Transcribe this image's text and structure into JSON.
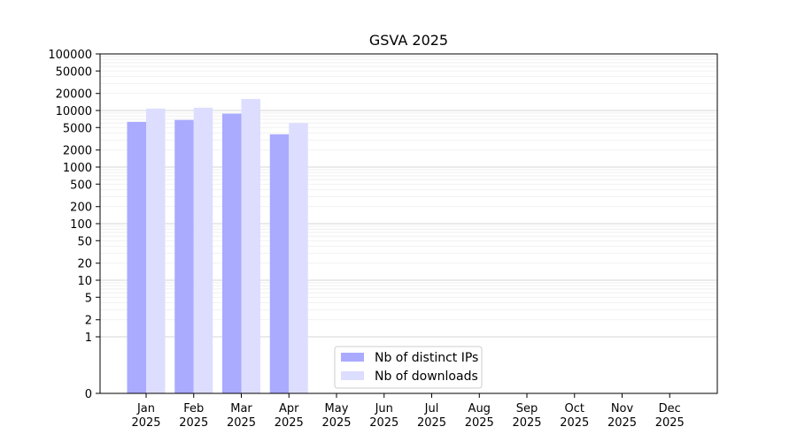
{
  "chart_data": {
    "type": "bar",
    "title": "GSVA 2025",
    "xlabel": "",
    "ylabel": "",
    "categories": [
      [
        "Jan",
        "2025"
      ],
      [
        "Feb",
        "2025"
      ],
      [
        "Mar",
        "2025"
      ],
      [
        "Apr",
        "2025"
      ],
      [
        "May",
        "2025"
      ],
      [
        "Jun",
        "2025"
      ],
      [
        "Jul",
        "2025"
      ],
      [
        "Aug",
        "2025"
      ],
      [
        "Sep",
        "2025"
      ],
      [
        "Oct",
        "2025"
      ],
      [
        "Nov",
        "2025"
      ],
      [
        "Dec",
        "2025"
      ]
    ],
    "series": [
      {
        "name": "Nb of distinct IPs",
        "color": "#aaaaff",
        "values": [
          6300,
          6800,
          8800,
          3800,
          null,
          null,
          null,
          null,
          null,
          null,
          null,
          null
        ]
      },
      {
        "name": "Nb of downloads",
        "color": "#ddddff",
        "values": [
          10800,
          11200,
          16000,
          6000,
          null,
          null,
          null,
          null,
          null,
          null,
          null,
          null
        ]
      }
    ],
    "yscale": "symlog",
    "ylim": [
      0,
      100000
    ],
    "yticks": [
      {
        "value": 0,
        "label": "0"
      },
      {
        "value": 1,
        "label": "1"
      },
      {
        "value": 2,
        "label": "2"
      },
      {
        "value": 5,
        "label": "5"
      },
      {
        "value": 10,
        "label": "10"
      },
      {
        "value": 20,
        "label": "20"
      },
      {
        "value": 50,
        "label": "50"
      },
      {
        "value": 100,
        "label": "100"
      },
      {
        "value": 200,
        "label": "200"
      },
      {
        "value": 500,
        "label": "500"
      },
      {
        "value": 1000,
        "label": "1000"
      },
      {
        "value": 2000,
        "label": "2000"
      },
      {
        "value": 5000,
        "label": "5000"
      },
      {
        "value": 10000,
        "label": "10000"
      },
      {
        "value": 20000,
        "label": "20000"
      },
      {
        "value": 50000,
        "label": "50000"
      },
      {
        "value": 100000,
        "label": "100000"
      }
    ],
    "grid": true,
    "legend_position": "bottom-center"
  }
}
